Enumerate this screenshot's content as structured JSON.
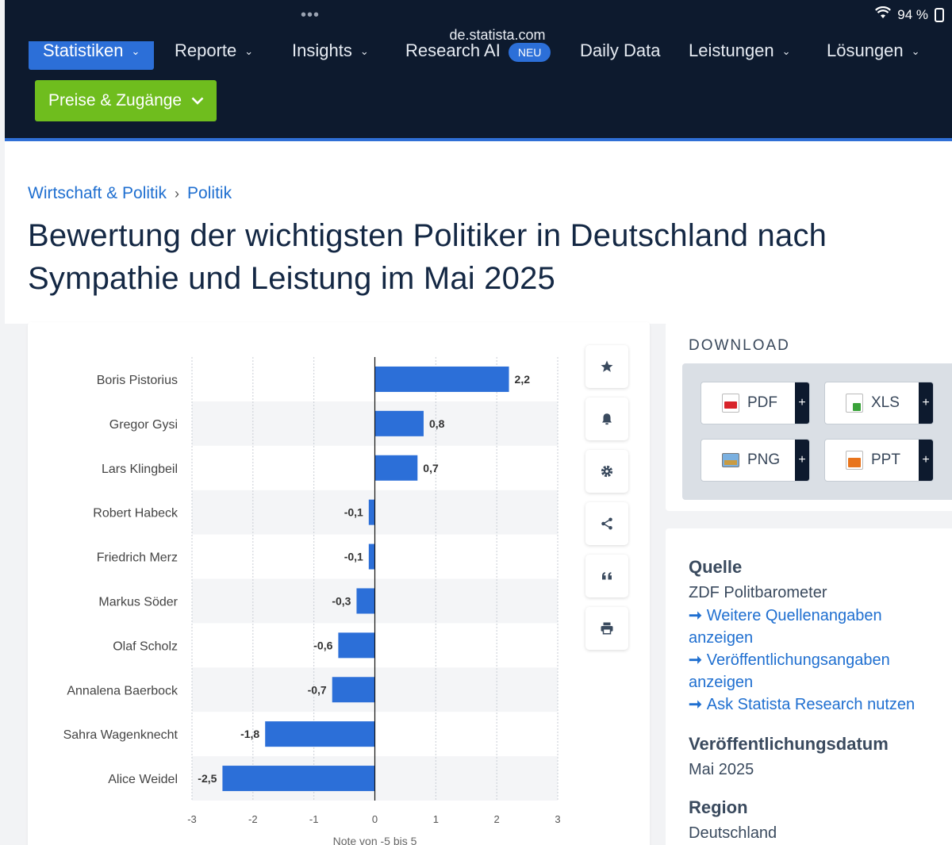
{
  "browser": {
    "url": "de.statista.com",
    "dots": "•••",
    "battery": "94 %"
  },
  "nav": {
    "items": [
      "Statistiken",
      "Reporte",
      "Insights",
      "Research AI",
      "Daily Data",
      "Leistungen",
      "Lösungen"
    ],
    "badge": "NEU",
    "cta": "Preise & Zugänge"
  },
  "breadcrumb": [
    "Wirtschaft & Politik",
    "Politik"
  ],
  "page_title": "Bewertung der wichtigsten Politiker in Deutschland nach Sympathie und Leistung im Mai 2025",
  "chart_data": {
    "type": "bar",
    "orientation": "horizontal",
    "categories": [
      "Boris Pistorius",
      "Gregor Gysi",
      "Lars Klingbeil",
      "Robert Habeck",
      "Friedrich Merz",
      "Markus Söder",
      "Olaf Scholz",
      "Annalena Baerbock",
      "Sahra Wagenknecht",
      "Alice Weidel"
    ],
    "values": [
      2.2,
      0.8,
      0.7,
      -0.1,
      -0.1,
      -0.3,
      -0.6,
      -0.7,
      -1.8,
      -2.5
    ],
    "labels": [
      "2,2",
      "0,8",
      "0,7",
      "-0,1",
      "-0,1",
      "-0,3",
      "-0,6",
      "-0,7",
      "-1,8",
      "-2,5"
    ],
    "xlim": [
      -3,
      3
    ],
    "ticks": [
      -3,
      -2,
      -1,
      0,
      1,
      2,
      3
    ],
    "xlabel": "Note von -5 bis 5",
    "bar_color": "#2c6fd8",
    "grid": true
  },
  "download": {
    "title": "DOWNLOAD",
    "buttons": [
      "PDF",
      "XLS",
      "PNG",
      "PPT"
    ],
    "plus": "+"
  },
  "source": {
    "heading": "Quelle",
    "name": "ZDF Politbarometer",
    "links": [
      "Weitere Quellenangaben anzeigen",
      "Veröffentlichungsangaben anzeigen",
      "Ask Statista Research nutzen"
    ],
    "date_heading": "Veröffentlichungsdatum",
    "date": "Mai 2025",
    "region_heading": "Region",
    "region": "Deutschland"
  }
}
